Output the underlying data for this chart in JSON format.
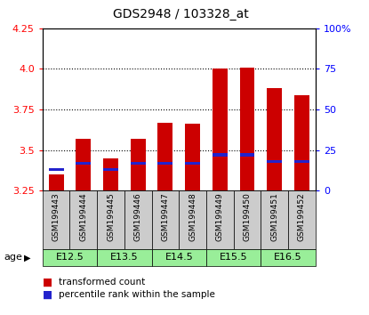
{
  "title": "GDS2948 / 103328_at",
  "samples": [
    "GSM199443",
    "GSM199444",
    "GSM199445",
    "GSM199446",
    "GSM199447",
    "GSM199448",
    "GSM199449",
    "GSM199450",
    "GSM199451",
    "GSM199452"
  ],
  "transformed_count": [
    3.35,
    3.57,
    3.45,
    3.57,
    3.67,
    3.66,
    4.0,
    4.01,
    3.88,
    3.84
  ],
  "percentile_rank": [
    3.38,
    3.42,
    3.38,
    3.42,
    3.42,
    3.42,
    3.47,
    3.47,
    3.43,
    3.43
  ],
  "ymin": 3.25,
  "ymax": 4.25,
  "yticks_left": [
    3.25,
    3.5,
    3.75,
    4.0,
    4.25
  ],
  "yticks_right": [
    0,
    25,
    50,
    75,
    100
  ],
  "bar_color": "#cc0000",
  "percentile_color": "#2222cc",
  "age_groups": [
    {
      "label": "E12.5",
      "start": 0,
      "end": 2
    },
    {
      "label": "E13.5",
      "start": 2,
      "end": 4
    },
    {
      "label": "E14.5",
      "start": 4,
      "end": 6
    },
    {
      "label": "E15.5",
      "start": 6,
      "end": 8
    },
    {
      "label": "E16.5",
      "start": 8,
      "end": 10
    }
  ],
  "age_bg_color": "#99ee99",
  "sample_bg_color": "#cccccc",
  "bar_width": 0.55,
  "title_fontsize": 10,
  "tick_fontsize": 8,
  "label_fontsize": 7.5,
  "sample_fontsize": 6.5
}
